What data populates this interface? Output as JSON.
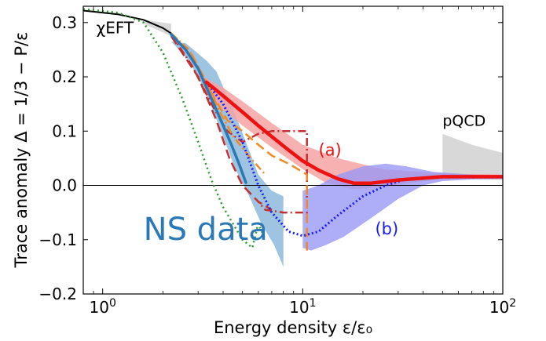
{
  "chart_data": {
    "type": "line",
    "xlabel": "Energy density ε/ε₀",
    "ylabel": "Trace anomaly Δ = 1/3 − P/ε",
    "x_scale": "log",
    "xlim": [
      0.8,
      100
    ],
    "ylim": [
      -0.2,
      0.33
    ],
    "x_ticks": [
      {
        "value": 1,
        "base": "10",
        "exp": "0"
      },
      {
        "value": 10,
        "base": "10",
        "exp": "1"
      },
      {
        "value": 100,
        "base": "10",
        "exp": "2"
      }
    ],
    "y_ticks": [
      {
        "value": -0.2,
        "label": "−0.2"
      },
      {
        "value": -0.1,
        "label": "−0.1"
      },
      {
        "value": 0.0,
        "label": "0.0"
      },
      {
        "value": 0.1,
        "label": "0.1"
      },
      {
        "value": 0.2,
        "label": "0.2"
      },
      {
        "value": 0.3,
        "label": "0.3"
      }
    ],
    "annotations": {
      "chieft": "χEFT",
      "pqcd": "pQCD",
      "ns_data": "NS data",
      "label_a": "(a)",
      "label_b": "(b)"
    },
    "colors": {
      "ns_band": "#9ec4e2",
      "red_band": "#f6a3a3",
      "blue_band": "#9a98f5",
      "pqcd_band": "#d8d8d8",
      "chieft_band": "#d8d8d8",
      "red": "#ee1111",
      "darkred": "#c23030",
      "blue": "#1a1aff",
      "steel": "#2b78b7",
      "orange": "#f08a24",
      "green": "#2a9a2a",
      "black": "#000000"
    },
    "bands": [
      {
        "id": "ns",
        "color_key": "ns_band",
        "opacity": 1.0,
        "upper": [
          [
            2.2,
            0.265
          ],
          [
            2.6,
            0.262
          ],
          [
            3.3,
            0.23
          ],
          [
            3.7,
            0.21
          ],
          [
            4.5,
            0.14
          ],
          [
            5.2,
            0.08
          ],
          [
            6.0,
            0.02
          ],
          [
            7.0,
            -0.01
          ],
          [
            8.0,
            -0.02
          ]
        ],
        "lower": [
          [
            8.0,
            -0.15
          ],
          [
            7.2,
            -0.11
          ],
          [
            6.2,
            -0.07
          ],
          [
            5.4,
            -0.02
          ],
          [
            4.6,
            0.03
          ],
          [
            4.0,
            0.09
          ],
          [
            3.3,
            0.17
          ],
          [
            2.7,
            0.23
          ],
          [
            2.2,
            0.265
          ]
        ]
      },
      {
        "id": "chieft",
        "color_key": "chieft_band",
        "opacity": 1.0,
        "upper": [
          [
            1.6,
            0.305
          ],
          [
            2.2,
            0.298
          ]
        ],
        "lower": [
          [
            2.2,
            0.275
          ],
          [
            1.6,
            0.298
          ]
        ]
      },
      {
        "id": "pqcd",
        "color_key": "pqcd_band",
        "opacity": 1.0,
        "upper": [
          [
            50,
            0.095
          ],
          [
            70,
            0.075
          ],
          [
            100,
            0.06
          ]
        ],
        "lower": [
          [
            100,
            0.01
          ],
          [
            70,
            0.012
          ],
          [
            50,
            0.012
          ]
        ]
      },
      {
        "id": "red",
        "color_key": "red_band",
        "opacity": 0.85,
        "upper": [
          [
            3.2,
            0.2
          ],
          [
            4.0,
            0.18
          ],
          [
            5.0,
            0.155
          ],
          [
            7.0,
            0.115
          ],
          [
            10,
            0.075
          ],
          [
            15,
            0.05
          ],
          [
            25,
            0.03
          ],
          [
            50,
            0.022
          ],
          [
            100,
            0.02
          ]
        ],
        "lower": [
          [
            100,
            0.012
          ],
          [
            60,
            0.012
          ],
          [
            40,
            0.008
          ],
          [
            25,
            -0.003
          ],
          [
            18,
            -0.007
          ],
          [
            13,
            0.005
          ],
          [
            10,
            0.03
          ],
          [
            7.0,
            0.07
          ],
          [
            5.0,
            0.11
          ],
          [
            4.0,
            0.14
          ],
          [
            3.2,
            0.17
          ]
        ]
      },
      {
        "id": "blue",
        "color_key": "blue_band",
        "opacity": 0.8,
        "upper": [
          [
            10,
            -0.01
          ],
          [
            12,
            0.0
          ],
          [
            15,
            0.02
          ],
          [
            20,
            0.035
          ],
          [
            26,
            0.04
          ],
          [
            33,
            0.035
          ],
          [
            45,
            0.025
          ],
          [
            70,
            0.02
          ],
          [
            100,
            0.018
          ]
        ],
        "lower": [
          [
            100,
            0.012
          ],
          [
            70,
            0.011
          ],
          [
            50,
            0.008
          ],
          [
            40,
            0.0
          ],
          [
            30,
            -0.025
          ],
          [
            22,
            -0.06
          ],
          [
            16,
            -0.095
          ],
          [
            13,
            -0.11
          ],
          [
            11,
            -0.12
          ],
          [
            10,
            -0.115
          ]
        ]
      }
    ],
    "series": [
      {
        "id": "black",
        "color_key": "black",
        "width": 2,
        "dash": "",
        "points": [
          [
            0.8,
            0.322
          ],
          [
            1.2,
            0.315
          ],
          [
            1.6,
            0.305
          ],
          [
            2.0,
            0.29
          ],
          [
            2.2,
            0.28
          ]
        ]
      },
      {
        "id": "green-dotted",
        "color_key": "green",
        "width": 2.5,
        "dash": "2,4",
        "points": [
          [
            0.8,
            0.325
          ],
          [
            1.2,
            0.318
          ],
          [
            1.6,
            0.3
          ],
          [
            2.0,
            0.245
          ],
          [
            2.5,
            0.16
          ],
          [
            3.0,
            0.08
          ],
          [
            3.5,
            0.01
          ],
          [
            4.0,
            -0.04
          ],
          [
            5.0,
            -0.1
          ],
          [
            5.6,
            -0.115
          ],
          [
            6.0,
            -0.07
          ],
          [
            6.5,
            -0.1
          ]
        ]
      },
      {
        "id": "darkred-dashdot",
        "color_key": "darkred",
        "width": 2.5,
        "dash": "10,4,2,4",
        "points": [
          [
            2.2,
            0.278
          ],
          [
            2.8,
            0.22
          ],
          [
            3.5,
            0.15
          ],
          [
            4.2,
            0.1
          ],
          [
            5.0,
            0.08
          ],
          [
            6.0,
            0.095
          ],
          [
            7.0,
            0.1
          ],
          [
            8.5,
            0.1
          ],
          [
            10.5,
            0.1
          ],
          [
            10.5,
            -0.05
          ],
          [
            8.0,
            -0.05
          ],
          [
            6.5,
            -0.045
          ],
          [
            6.0,
            -0.03
          ]
        ]
      },
      {
        "id": "darkred-dashed",
        "color_key": "darkred",
        "width": 2.5,
        "dash": "12,6",
        "points": [
          [
            2.2,
            0.275
          ],
          [
            3.0,
            0.2
          ],
          [
            3.7,
            0.12
          ],
          [
            4.3,
            0.05
          ],
          [
            5.0,
            0.0
          ],
          [
            6.0,
            -0.03
          ],
          [
            7.0,
            -0.045
          ]
        ]
      },
      {
        "id": "orange-dashed",
        "color_key": "orange",
        "width": 2.5,
        "dash": "12,6",
        "points": [
          [
            2.2,
            0.28
          ],
          [
            2.8,
            0.24
          ],
          [
            3.5,
            0.17
          ],
          [
            4.2,
            0.12
          ],
          [
            5.0,
            0.1
          ],
          [
            6.0,
            0.075
          ],
          [
            7.0,
            0.055
          ],
          [
            8.5,
            0.04
          ],
          [
            10.5,
            0.02
          ],
          [
            10.5,
            -0.12
          ]
        ]
      },
      {
        "id": "orange-dashdot",
        "color_key": "orange",
        "width": 2.5,
        "dash": "10,4,2,4",
        "points": [
          [
            2.2,
            0.28
          ],
          [
            2.7,
            0.25
          ],
          [
            3.2,
            0.2
          ],
          [
            3.8,
            0.14
          ],
          [
            4.5,
            0.09
          ],
          [
            5.5,
            0.05
          ],
          [
            6.5,
            0.02
          ]
        ]
      },
      {
        "id": "steel-solid",
        "color_key": "steel",
        "width": 3.5,
        "dash": "",
        "points": [
          [
            2.2,
            0.278
          ],
          [
            2.6,
            0.25
          ],
          [
            3.0,
            0.215
          ],
          [
            3.4,
            0.17
          ],
          [
            3.9,
            0.12
          ],
          [
            4.4,
            0.075
          ],
          [
            4.8,
            0.04
          ],
          [
            5.2,
            0.005
          ]
        ]
      },
      {
        "id": "blue-dotted",
        "color_key": "blue",
        "width": 3,
        "dash": "2,3",
        "points": [
          [
            3.3,
            0.19
          ],
          [
            4.0,
            0.15
          ],
          [
            5.0,
            0.08
          ],
          [
            6.0,
            0.0
          ],
          [
            7.0,
            -0.05
          ],
          [
            8.5,
            -0.085
          ],
          [
            10,
            -0.093
          ],
          [
            12,
            -0.085
          ],
          [
            15,
            -0.055
          ],
          [
            20,
            -0.02
          ],
          [
            26,
            0.0
          ],
          [
            33,
            0.012
          ],
          [
            45,
            0.015
          ],
          [
            70,
            0.015
          ],
          [
            100,
            0.015
          ]
        ]
      },
      {
        "id": "red-solid",
        "color_key": "red",
        "width": 4.5,
        "dash": "",
        "points": [
          [
            3.3,
            0.19
          ],
          [
            4.0,
            0.165
          ],
          [
            5.0,
            0.135
          ],
          [
            6.0,
            0.11
          ],
          [
            7.0,
            0.09
          ],
          [
            8.5,
            0.065
          ],
          [
            10,
            0.045
          ],
          [
            12,
            0.028
          ],
          [
            15,
            0.012
          ],
          [
            18,
            0.004
          ],
          [
            22,
            0.004
          ],
          [
            30,
            0.01
          ],
          [
            50,
            0.016
          ],
          [
            100,
            0.016
          ]
        ]
      }
    ],
    "text_annotations": [
      {
        "key": "chieft",
        "x": 0.93,
        "y": 0.28,
        "color_key": "black",
        "size": 20,
        "anchor": "start"
      },
      {
        "key": "pqcd",
        "x": 50,
        "y": 0.11,
        "color_key": "black",
        "size": 19,
        "anchor": "start"
      },
      {
        "key": "ns_data",
        "x": 1.6,
        "y": -0.1,
        "color_key": "steel",
        "size": 40,
        "anchor": "start"
      },
      {
        "key": "label_a",
        "x": 12,
        "y": 0.055,
        "color_key": "red",
        "size": 21,
        "anchor": "start"
      },
      {
        "key": "label_b",
        "x": 23,
        "y": -0.09,
        "color_key": "blue",
        "size": 21,
        "anchor": "start"
      }
    ],
    "zero_line": 0.0
  }
}
